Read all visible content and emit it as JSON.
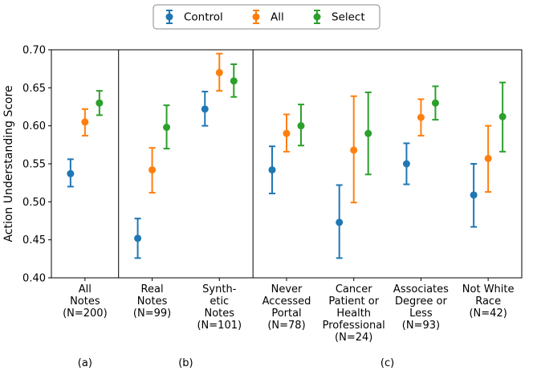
{
  "chart_data": {
    "type": "scatter",
    "subtype": "point-estimate-with-error-bars",
    "title": "",
    "xlabel": "",
    "ylabel": "Action Understanding Score",
    "ylim": [
      0.4,
      0.7
    ],
    "yticks": [
      0.4,
      0.45,
      0.5,
      0.55,
      0.6,
      0.65,
      0.7
    ],
    "grid": false,
    "legend_position": "top-center",
    "colors": {
      "control": "#1f77b4",
      "all": "#ff7f0e",
      "select": "#2ca02c"
    },
    "categories": [
      {
        "label_lines": [
          "All",
          "Notes",
          "(N=200)"
        ],
        "panel": "a"
      },
      {
        "label_lines": [
          "Real",
          "Notes",
          "(N=99)"
        ],
        "panel": "b"
      },
      {
        "label_lines": [
          "Synth-",
          "etic",
          "Notes",
          "(N=101)"
        ],
        "panel": "b"
      },
      {
        "label_lines": [
          "Never",
          "Accessed",
          "Portal",
          "(N=78)"
        ],
        "panel": "c"
      },
      {
        "label_lines": [
          "Cancer",
          "Patient or",
          "Health",
          "Professional",
          "(N=24)"
        ],
        "panel": "c"
      },
      {
        "label_lines": [
          "Associates",
          "Degree or",
          "Less",
          "(N=93)"
        ],
        "panel": "c"
      },
      {
        "label_lines": [
          "Not White",
          "Race",
          "(N=42)"
        ],
        "panel": "c"
      }
    ],
    "series": [
      {
        "name": "Control",
        "color": "#1f77b4",
        "values": [
          0.537,
          0.452,
          0.622,
          0.542,
          0.473,
          0.55,
          0.509
        ],
        "ci_low": [
          0.52,
          0.426,
          0.6,
          0.511,
          0.426,
          0.523,
          0.467
        ],
        "ci_high": [
          0.556,
          0.478,
          0.645,
          0.573,
          0.522,
          0.577,
          0.55
        ]
      },
      {
        "name": "All",
        "color": "#ff7f0e",
        "values": [
          0.605,
          0.542,
          0.67,
          0.59,
          0.568,
          0.611,
          0.557
        ],
        "ci_low": [
          0.587,
          0.512,
          0.646,
          0.566,
          0.499,
          0.587,
          0.513
        ],
        "ci_high": [
          0.622,
          0.571,
          0.695,
          0.615,
          0.639,
          0.635,
          0.6
        ]
      },
      {
        "name": "Select",
        "color": "#2ca02c",
        "values": [
          0.63,
          0.598,
          0.659,
          0.6,
          0.59,
          0.63,
          0.612
        ],
        "ci_low": [
          0.614,
          0.57,
          0.638,
          0.574,
          0.536,
          0.608,
          0.566
        ],
        "ci_high": [
          0.646,
          0.627,
          0.681,
          0.628,
          0.644,
          0.652,
          0.657
        ]
      }
    ],
    "panel_separators_after_category": [
      0,
      2
    ],
    "panel_labels": [
      {
        "text": "(a)",
        "categories": [
          0
        ]
      },
      {
        "text": "(b)",
        "categories": [
          1,
          2
        ]
      },
      {
        "text": "(c)",
        "categories": [
          3,
          4,
          5,
          6
        ]
      }
    ]
  }
}
